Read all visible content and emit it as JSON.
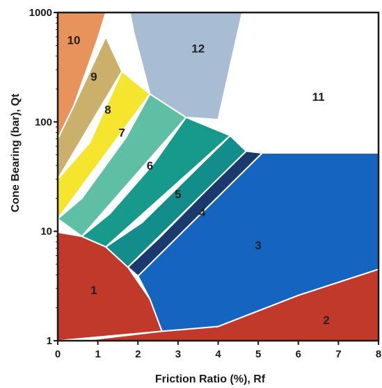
{
  "chart_data": {
    "type": "area",
    "title": "",
    "xlabel": "Friction Ratio  (%),  Rf",
    "ylabel": "Cone Bearing (bar), Qt",
    "x_ticks": [
      "0",
      "1",
      "2",
      "3",
      "4",
      "5",
      "6",
      "7",
      "8"
    ],
    "y_ticks": [
      "1",
      "10",
      "100",
      "1000"
    ],
    "xlim": [
      0,
      8
    ],
    "ylim": [
      1,
      1000
    ],
    "y_scale": "log",
    "grid": false,
    "zones": [
      {
        "label": "1",
        "color": "#c0392b",
        "polygon": [
          [
            0,
            1
          ],
          [
            2.6,
            1.22
          ],
          [
            2.3,
            2.4
          ],
          [
            1.75,
            4.7
          ],
          [
            1.2,
            7.2
          ],
          [
            0.6,
            9.0
          ],
          [
            0,
            9.8
          ]
        ],
        "label_at": [
          0.9,
          2.9
        ]
      },
      {
        "label": "2",
        "color": "#c0392b",
        "polygon": [
          [
            0.6,
            1
          ],
          [
            8,
            1
          ],
          [
            8,
            4.5
          ],
          [
            6,
            2.6
          ],
          [
            4,
            1.35
          ],
          [
            2.6,
            1.22
          ]
        ],
        "label_at": [
          6.7,
          1.55
        ]
      },
      {
        "label": "3",
        "color": "#1565c0",
        "polygon": [
          [
            2.6,
            1.22
          ],
          [
            4,
            1.35
          ],
          [
            6,
            2.6
          ],
          [
            8,
            4.5
          ],
          [
            8,
            52
          ],
          [
            5.1,
            52
          ],
          [
            4.3,
            29
          ],
          [
            3.2,
            15
          ],
          [
            2.0,
            3.9
          ],
          [
            2.3,
            2.4
          ]
        ],
        "label_at": [
          5.0,
          7.5
        ]
      },
      {
        "label": "4",
        "color": "#1a3a6e",
        "polygon": [
          [
            2.0,
            3.9
          ],
          [
            1.75,
            4.7
          ],
          [
            2.5,
            8.5
          ],
          [
            3.9,
            28
          ],
          [
            4.7,
            54
          ],
          [
            5.1,
            52
          ]
        ],
        "label_at": [
          3.6,
          15
        ]
      },
      {
        "label": "5",
        "color": "#138c8c",
        "polygon": [
          [
            1.75,
            4.7
          ],
          [
            1.2,
            7.2
          ],
          [
            2.1,
            12
          ],
          [
            3.2,
            30
          ],
          [
            4.3,
            75
          ],
          [
            4.7,
            54
          ]
        ],
        "label_at": [
          3.0,
          22
        ]
      },
      {
        "label": "6",
        "color": "#17998c",
        "polygon": [
          [
            1.2,
            7.2
          ],
          [
            0.6,
            9.0
          ],
          [
            1.3,
            14.5
          ],
          [
            2.4,
            42
          ],
          [
            3.2,
            110
          ],
          [
            4.3,
            75
          ]
        ],
        "label_at": [
          2.3,
          40
        ]
      },
      {
        "label": "7",
        "color": "#5fbfa5",
        "polygon": [
          [
            0.6,
            9.0
          ],
          [
            0,
            13
          ],
          [
            0.6,
            20
          ],
          [
            1.7,
            72
          ],
          [
            2.3,
            180
          ],
          [
            3.2,
            110
          ]
        ],
        "label_at": [
          1.6,
          80
        ]
      },
      {
        "label": "8",
        "color": "#f5e52e",
        "polygon": [
          [
            0,
            13
          ],
          [
            0,
            30
          ],
          [
            0.8,
            65
          ],
          [
            1.6,
            290
          ],
          [
            2.3,
            180
          ]
        ],
        "label_at": [
          1.25,
          130
        ]
      },
      {
        "label": "9",
        "color": "#cbb06b",
        "polygon": [
          [
            0,
            30
          ],
          [
            0,
            70
          ],
          [
            0.4,
            140
          ],
          [
            1.2,
            600
          ],
          [
            1.6,
            290
          ]
        ],
        "label_at": [
          0.9,
          260
        ]
      },
      {
        "label": "10",
        "color": "#e8935c",
        "polygon": [
          [
            0,
            70
          ],
          [
            0,
            1000
          ],
          [
            1.2,
            1000
          ],
          [
            1.0,
            580
          ],
          [
            0.4,
            140
          ]
        ],
        "label_at": [
          0.4,
          560
        ]
      },
      {
        "label": "11",
        "color": "#ffffff",
        "polygon": [
          [
            4.6,
            1000
          ],
          [
            8,
            1000
          ],
          [
            8,
            52
          ],
          [
            5.1,
            52
          ],
          [
            4.3,
            75
          ],
          [
            4.0,
            105
          ]
        ],
        "label_at": [
          6.5,
          170
        ]
      },
      {
        "label": "12",
        "color": "#a8bdd4",
        "polygon": [
          [
            1.8,
            1000
          ],
          [
            4.6,
            1000
          ],
          [
            4.0,
            105
          ],
          [
            3.2,
            110
          ],
          [
            2.3,
            180
          ],
          [
            1.9,
            650
          ]
        ],
        "label_at": [
          3.5,
          470
        ]
      }
    ]
  }
}
